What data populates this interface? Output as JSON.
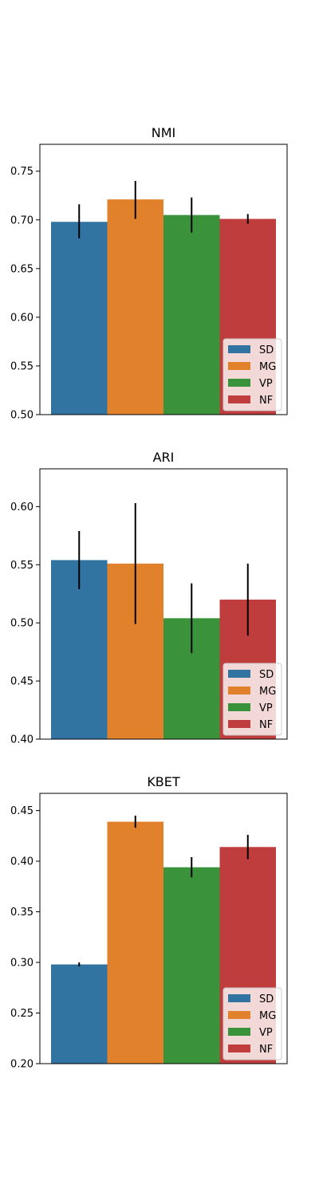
{
  "chart_data": [
    {
      "type": "bar",
      "title": "NMI",
      "xlabel": "",
      "ylabel": "",
      "ylim": [
        0.5,
        0.7776
      ],
      "yticks": [
        "0.50",
        "0.55",
        "0.60",
        "0.65",
        "0.70",
        "0.75"
      ],
      "grid": false,
      "legend_position": "bottom-right",
      "series": [
        {
          "name": "SD",
          "color": "#3274a1",
          "value": 0.698,
          "err_low": 0.681,
          "err_high": 0.716
        },
        {
          "name": "MG",
          "color": "#e1812c",
          "value": 0.721,
          "err_low": 0.701,
          "err_high": 0.74
        },
        {
          "name": "VP",
          "color": "#3a923a",
          "value": 0.705,
          "err_low": 0.687,
          "err_high": 0.723
        },
        {
          "name": "NF",
          "color": "#c03d3e",
          "value": 0.701,
          "err_low": 0.696,
          "err_high": 0.706
        }
      ]
    },
    {
      "type": "bar",
      "title": "ARI",
      "xlabel": "",
      "ylabel": "",
      "ylim": [
        0.4,
        0.6325
      ],
      "yticks": [
        "0.40",
        "0.45",
        "0.50",
        "0.55",
        "0.60"
      ],
      "grid": false,
      "legend_position": "bottom-right",
      "series": [
        {
          "name": "SD",
          "color": "#3274a1",
          "value": 0.554,
          "err_low": 0.529,
          "err_high": 0.579
        },
        {
          "name": "MG",
          "color": "#e1812c",
          "value": 0.551,
          "err_low": 0.499,
          "err_high": 0.603
        },
        {
          "name": "VP",
          "color": "#3a923a",
          "value": 0.504,
          "err_low": 0.474,
          "err_high": 0.534
        },
        {
          "name": "NF",
          "color": "#c03d3e",
          "value": 0.52,
          "err_low": 0.489,
          "err_high": 0.551
        }
      ]
    },
    {
      "type": "bar",
      "title": "KBET",
      "xlabel": "",
      "ylabel": "",
      "ylim": [
        0.2,
        0.467
      ],
      "yticks": [
        "0.20",
        "0.25",
        "0.30",
        "0.35",
        "0.40",
        "0.45"
      ],
      "grid": false,
      "legend_position": "bottom-right",
      "series": [
        {
          "name": "SD",
          "color": "#3274a1",
          "value": 0.298,
          "err_low": 0.296,
          "err_high": 0.3
        },
        {
          "name": "MG",
          "color": "#e1812c",
          "value": 0.439,
          "err_low": 0.433,
          "err_high": 0.445
        },
        {
          "name": "VP",
          "color": "#3a923a",
          "value": 0.394,
          "err_low": 0.384,
          "err_high": 0.404
        },
        {
          "name": "NF",
          "color": "#c03d3e",
          "value": 0.414,
          "err_low": 0.402,
          "err_high": 0.426
        }
      ]
    }
  ]
}
